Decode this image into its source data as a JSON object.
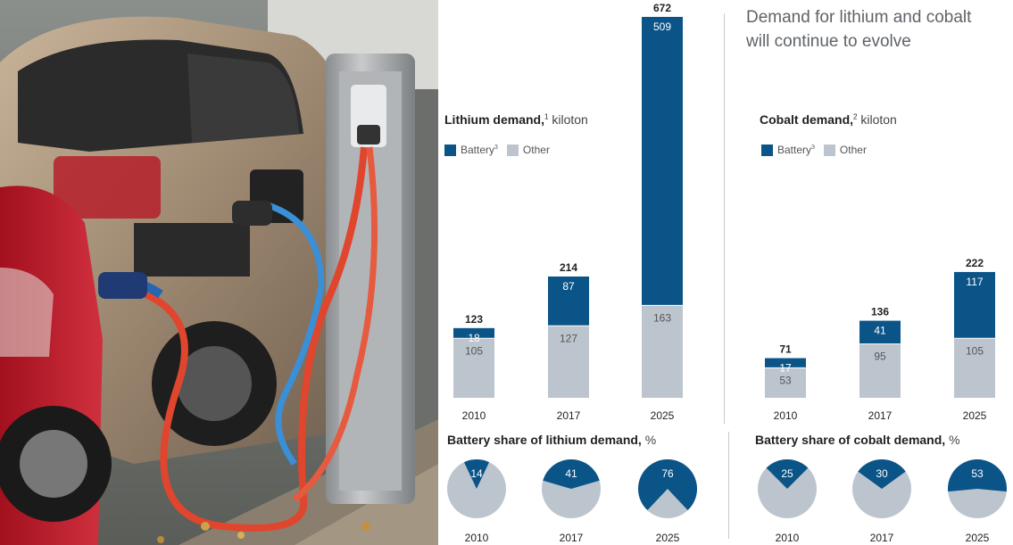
{
  "title": "Demand for lithium and cobalt will continue to evolve",
  "title_lines": [
    "Demand for lithium and cobalt",
    "will continue to evolve"
  ],
  "colors": {
    "battery": "#0b5488",
    "other": "#bcc5ce",
    "text": "#222222",
    "title": "#5f6368"
  },
  "lithium_chart": {
    "title_bold": "Lithium demand,",
    "footnote": "1",
    "unit": "kiloton",
    "legend": [
      {
        "label": "Battery",
        "footnote": "3",
        "color": "#0b5488"
      },
      {
        "label": "Other",
        "footnote": "",
        "color": "#bcc5ce"
      }
    ]
  },
  "cobalt_chart": {
    "title_bold": "Cobalt demand,",
    "footnote": "2",
    "unit": "kiloton",
    "legend": [
      {
        "label": "Battery",
        "footnote": "3",
        "color": "#0b5488"
      },
      {
        "label": "Other",
        "footnote": "",
        "color": "#bcc5ce"
      }
    ]
  },
  "lithium_share": {
    "title_bold": "Battery share of lithium demand,",
    "unit": "%"
  },
  "cobalt_share": {
    "title_bold": "Battery share of cobalt demand,",
    "unit": "%"
  },
  "chart_data": [
    {
      "type": "bar",
      "stacked": true,
      "title": "Lithium demand, kiloton",
      "categories": [
        "2010",
        "2017",
        "2025"
      ],
      "series": [
        {
          "name": "Other",
          "values": [
            105,
            127,
            163
          ]
        },
        {
          "name": "Battery",
          "values": [
            18,
            87,
            509
          ]
        }
      ],
      "totals": [
        123,
        214,
        672
      ]
    },
    {
      "type": "bar",
      "stacked": true,
      "title": "Cobalt demand, kiloton",
      "categories": [
        "2010",
        "2017",
        "2025"
      ],
      "series": [
        {
          "name": "Other",
          "values": [
            53,
            95,
            105
          ]
        },
        {
          "name": "Battery",
          "values": [
            17,
            41,
            117
          ]
        }
      ],
      "totals": [
        71,
        136,
        222
      ]
    },
    {
      "type": "pie",
      "title": "Battery share of lithium demand, %",
      "categories": [
        "2010",
        "2017",
        "2025"
      ],
      "values": [
        14,
        41,
        76
      ]
    },
    {
      "type": "pie",
      "title": "Battery share of cobalt demand, %",
      "categories": [
        "2010",
        "2017",
        "2025"
      ],
      "values": [
        25,
        30,
        53
      ]
    }
  ]
}
